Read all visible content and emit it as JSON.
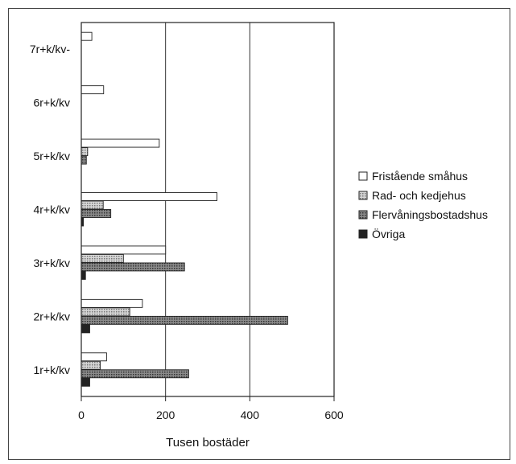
{
  "chart_data": {
    "type": "bar",
    "orientation": "horizontal",
    "categories": [
      "7r+k/kv-",
      "6r+k/kv",
      "5r+k/kv",
      "4r+k/kv",
      "3r+k/kv",
      "2r+k/kv",
      "1r+k/kv"
    ],
    "series": [
      {
        "name": "Fristående småhus",
        "color": "#ffffff",
        "pattern": "none",
        "values": [
          25,
          53,
          185,
          322,
          200,
          145,
          60
        ]
      },
      {
        "name": "Rad- och kedjehus",
        "color": "#bbbbbb",
        "pattern": "dots",
        "values": [
          0,
          0,
          15,
          52,
          100,
          115,
          45
        ]
      },
      {
        "name": "Flervåningsbostadshus",
        "color": "#666666",
        "pattern": "hatch",
        "values": [
          0,
          0,
          12,
          70,
          245,
          490,
          255
        ]
      },
      {
        "name": "Övriga",
        "color": "#222222",
        "pattern": "solid",
        "values": [
          0,
          0,
          0,
          5,
          10,
          20,
          20
        ]
      }
    ],
    "xlabel": "Tusen bostäder",
    "xlim": [
      0,
      600
    ],
    "xticks": [
      "0",
      "200",
      "400",
      "600"
    ],
    "grid": "vertical",
    "legend": "right"
  }
}
